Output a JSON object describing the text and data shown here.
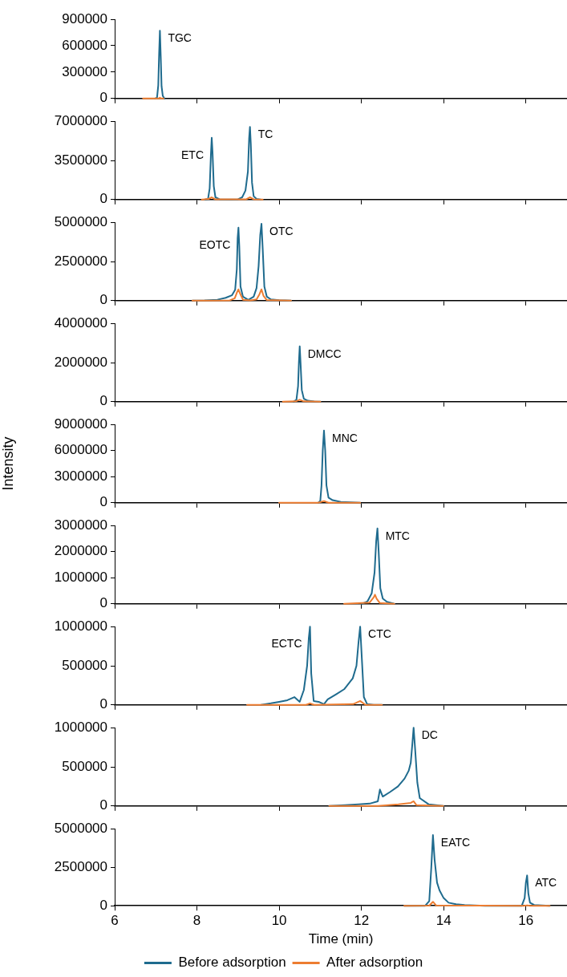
{
  "chart_data": [
    {
      "type": "line",
      "xlim": [
        6,
        17
      ],
      "xticks": [
        6,
        8,
        10,
        12,
        14,
        16
      ],
      "ylim": [
        0,
        900000
      ],
      "yticks": [
        0,
        300000,
        600000,
        900000
      ],
      "tick_labels": "y",
      "grid": false,
      "legend": false,
      "marker": "none",
      "annotations": [
        {
          "text": "TGC",
          "x": 7.1,
          "y": 770000
        }
      ],
      "series": [
        {
          "color": "#1f6b8e",
          "x": [
            6.98,
            7.03,
            7.06,
            7.08,
            7.1,
            7.12,
            7.14,
            7.17,
            7.21
          ],
          "values": [
            0,
            10000,
            150000,
            500000,
            770000,
            480000,
            140000,
            30000,
            0
          ]
        },
        {
          "color": "#ed7d31",
          "x": [
            6.69,
            7.0,
            7.08,
            7.1,
            7.12,
            7.19
          ],
          "values": [
            0,
            0,
            0,
            10000,
            0,
            0
          ]
        }
      ]
    },
    {
      "type": "line",
      "xlim": [
        6,
        17
      ],
      "xticks": [
        6,
        8,
        10,
        12,
        14,
        16
      ],
      "ylim": [
        0,
        7000000
      ],
      "yticks": [
        0,
        3500000,
        7000000
      ],
      "tick_labels": "y",
      "grid": false,
      "legend": false,
      "marker": "none",
      "annotations": [
        {
          "text": "ETC",
          "x": 8.36,
          "y": 5520000
        },
        {
          "text": "TC",
          "x": 9.29,
          "y": 6500000
        }
      ],
      "series": [
        {
          "color": "#1f6b8e",
          "x": [
            8.2,
            8.27,
            8.31,
            8.34,
            8.36,
            8.38,
            8.41,
            8.45,
            8.55,
            8.8,
            9.0,
            9.1,
            9.18,
            9.24,
            9.27,
            9.29,
            9.31,
            9.34,
            9.38,
            9.45,
            9.55
          ],
          "values": [
            0,
            50000,
            1000000,
            4000000,
            5520000,
            4200000,
            1200000,
            200000,
            30000,
            10000,
            30000,
            200000,
            800000,
            2500000,
            5500000,
            6500000,
            5000000,
            1500000,
            300000,
            60000,
            0
          ]
        },
        {
          "color": "#ed7d31",
          "x": [
            8.12,
            8.28,
            8.36,
            8.44,
            9.2,
            9.29,
            9.38,
            9.6
          ],
          "values": [
            0,
            50000,
            200000,
            30000,
            30000,
            200000,
            30000,
            0
          ]
        }
      ]
    },
    {
      "type": "line",
      "xlim": [
        6,
        17
      ],
      "xticks": [
        6,
        8,
        10,
        12,
        14,
        16
      ],
      "ylim": [
        0,
        5000000
      ],
      "yticks": [
        0,
        2500000,
        5000000
      ],
      "tick_labels": "y",
      "grid": false,
      "legend": false,
      "marker": "none",
      "annotations": [
        {
          "text": "EOTC",
          "x": 9.01,
          "y": 4660000
        },
        {
          "text": "OTC",
          "x": 9.57,
          "y": 4910000
        }
      ],
      "series": [
        {
          "color": "#1f6b8e",
          "x": [
            7.89,
            8.2,
            8.5,
            8.7,
            8.85,
            8.93,
            8.97,
            8.99,
            9.01,
            9.03,
            9.06,
            9.12,
            9.25,
            9.38,
            9.45,
            9.5,
            9.54,
            9.57,
            9.6,
            9.64,
            9.7,
            9.8,
            10.0,
            10.29
          ],
          "values": [
            0,
            20000,
            60000,
            180000,
            340000,
            700000,
            2000000,
            4000000,
            4660000,
            3500000,
            900000,
            250000,
            50000,
            250000,
            800000,
            2200000,
            4200000,
            4910000,
            3300000,
            900000,
            250000,
            80000,
            30000,
            0
          ]
        },
        {
          "color": "#ed7d31",
          "x": [
            7.89,
            8.8,
            8.92,
            8.97,
            9.01,
            9.05,
            9.12,
            9.3,
            9.45,
            9.52,
            9.57,
            9.62,
            9.7,
            10.29
          ],
          "values": [
            0,
            20000,
            150000,
            500000,
            720000,
            450000,
            60000,
            20000,
            80000,
            400000,
            720000,
            300000,
            40000,
            0
          ]
        }
      ]
    },
    {
      "type": "line",
      "xlim": [
        6,
        17
      ],
      "xticks": [
        6,
        8,
        10,
        12,
        14,
        16
      ],
      "ylim": [
        0,
        4000000
      ],
      "yticks": [
        0,
        2000000,
        4000000
      ],
      "tick_labels": "y",
      "grid": false,
      "legend": false,
      "marker": "none",
      "annotations": [
        {
          "text": "DMCC",
          "x": 10.5,
          "y": 2830000
        }
      ],
      "series": [
        {
          "color": "#1f6b8e",
          "x": [
            10.35,
            10.42,
            10.46,
            10.48,
            10.5,
            10.52,
            10.55,
            10.6,
            10.7,
            10.85,
            11.0
          ],
          "values": [
            0,
            100000,
            800000,
            2000000,
            2830000,
            2000000,
            600000,
            150000,
            50000,
            10000,
            0
          ]
        },
        {
          "color": "#ed7d31",
          "x": [
            10.09,
            10.4,
            10.5,
            10.6,
            11.0
          ],
          "values": [
            0,
            20000,
            100000,
            20000,
            0
          ]
        }
      ]
    },
    {
      "type": "line",
      "xlim": [
        6,
        17
      ],
      "xticks": [
        6,
        8,
        10,
        12,
        14,
        16
      ],
      "ylim": [
        0,
        9000000
      ],
      "yticks": [
        0,
        3000000,
        6000000,
        9000000
      ],
      "tick_labels": "y",
      "grid": false,
      "legend": false,
      "marker": "none",
      "ylabel": "Intensity",
      "annotations": [
        {
          "text": "MNC",
          "x": 11.09,
          "y": 8270000
        }
      ],
      "series": [
        {
          "color": "#1f6b8e",
          "x": [
            10.95,
            11.0,
            11.03,
            11.06,
            11.09,
            11.12,
            11.15,
            11.2,
            11.3,
            11.5,
            11.97
          ],
          "values": [
            0,
            200000,
            2000000,
            6000000,
            8300000,
            6000000,
            2000000,
            600000,
            300000,
            100000,
            0
          ]
        },
        {
          "color": "#ed7d31",
          "x": [
            10.0,
            10.95,
            11.09,
            11.2,
            11.97
          ],
          "values": [
            0,
            0,
            200000,
            0,
            0
          ]
        }
      ]
    },
    {
      "type": "line",
      "xlim": [
        6,
        17
      ],
      "xticks": [
        6,
        8,
        10,
        12,
        14,
        16
      ],
      "ylim": [
        0,
        3000000
      ],
      "yticks": [
        0,
        1000000,
        2000000,
        3000000
      ],
      "tick_labels": "y",
      "grid": false,
      "legend": false,
      "marker": "none",
      "annotations": [
        {
          "text": "MTC",
          "x": 12.39,
          "y": 2890000
        }
      ],
      "series": [
        {
          "color": "#1f6b8e",
          "x": [
            12.01,
            12.15,
            12.25,
            12.32,
            12.36,
            12.39,
            12.42,
            12.46,
            12.52,
            12.62,
            12.8
          ],
          "values": [
            0,
            100000,
            400000,
            1200000,
            2400000,
            2890000,
            2000000,
            600000,
            200000,
            80000,
            0
          ]
        },
        {
          "color": "#ed7d31",
          "x": [
            11.58,
            12.2,
            12.3,
            12.33,
            12.37,
            12.45,
            12.8
          ],
          "values": [
            0,
            50000,
            250000,
            350000,
            200000,
            30000,
            0
          ]
        }
      ]
    },
    {
      "type": "line",
      "xlim": [
        6,
        17
      ],
      "xticks": [
        6,
        8,
        10,
        12,
        14,
        16
      ],
      "ylim": [
        0,
        1000000
      ],
      "yticks": [
        0,
        500000,
        1000000
      ],
      "tick_labels": "y",
      "grid": false,
      "legend": false,
      "marker": "none",
      "annotations": [
        {
          "text": "ECTC",
          "x": 10.75,
          "y": 1000000
        },
        {
          "text": "CTC",
          "x": 11.97,
          "y": 1000000
        }
      ],
      "series": [
        {
          "color": "#1f6b8e",
          "x": [
            9.56,
            9.8,
            10.0,
            10.2,
            10.37,
            10.5,
            10.6,
            10.68,
            10.72,
            10.75,
            10.78,
            10.84,
            10.96,
            11.09,
            11.18,
            11.4,
            11.58,
            11.79,
            11.88,
            11.93,
            11.97,
            12.01,
            12.06,
            12.14,
            12.3,
            12.5
          ],
          "values": [
            0,
            20000,
            40000,
            60000,
            100000,
            40000,
            190000,
            500000,
            850000,
            1000000,
            400000,
            50000,
            40000,
            10000,
            70000,
            140000,
            200000,
            340000,
            500000,
            800000,
            1000000,
            600000,
            100000,
            10000,
            0,
            0
          ]
        },
        {
          "color": "#ed7d31",
          "x": [
            9.22,
            10.65,
            10.75,
            10.85,
            11.8,
            11.97,
            12.1,
            12.5
          ],
          "values": [
            0,
            0,
            20000,
            0,
            10000,
            50000,
            0,
            0
          ]
        }
      ]
    },
    {
      "type": "line",
      "xlim": [
        6,
        17
      ],
      "xticks": [
        6,
        8,
        10,
        12,
        14,
        16
      ],
      "ylim": [
        0,
        1000000
      ],
      "yticks": [
        0,
        500000,
        1000000
      ],
      "tick_labels": "y",
      "grid": false,
      "legend": false,
      "marker": "none",
      "annotations": [
        {
          "text": "DC",
          "x": 13.27,
          "y": 1000000
        }
      ],
      "series": [
        {
          "color": "#1f6b8e",
          "x": [
            11.22,
            11.6,
            11.93,
            12.2,
            12.4,
            12.45,
            12.52,
            12.7,
            12.89,
            13.05,
            13.15,
            13.2,
            13.24,
            13.27,
            13.31,
            13.36,
            13.42,
            13.64,
            13.99
          ],
          "values": [
            0,
            10000,
            20000,
            30000,
            60000,
            210000,
            120000,
            180000,
            250000,
            350000,
            450000,
            550000,
            800000,
            1000000,
            700000,
            300000,
            100000,
            20000,
            0
          ]
        },
        {
          "color": "#ed7d31",
          "x": [
            11.22,
            12.4,
            12.9,
            13.2,
            13.27,
            13.34,
            13.99
          ],
          "values": [
            0,
            0,
            20000,
            40000,
            60000,
            10000,
            0
          ]
        }
      ]
    },
    {
      "type": "line",
      "xlim": [
        6,
        17
      ],
      "xticks": [
        6,
        8,
        10,
        12,
        14,
        16
      ],
      "ylim": [
        0,
        5000000
      ],
      "yticks": [
        0,
        2500000,
        5000000
      ],
      "grid": false,
      "legend": "bottom",
      "marker": "none",
      "xlabel": "Time (min)",
      "annotations": [
        {
          "text": "EATC",
          "x": 13.74,
          "y": 4590000
        },
        {
          "text": "ATC",
          "x": 16.03,
          "y": 1970000
        }
      ],
      "series": [
        {
          "name": "Before adsorption",
          "color": "#1f6b8e",
          "x": [
            13.04,
            13.55,
            13.65,
            13.7,
            13.74,
            13.78,
            13.84,
            13.9,
            14.0,
            14.12,
            14.3,
            14.51,
            15.0,
            15.9,
            15.97,
            16.0,
            16.03,
            16.06,
            16.1,
            16.2,
            16.58
          ],
          "values": [
            0,
            0,
            300000,
            2500000,
            4590000,
            3000000,
            1500000,
            1000000,
            500000,
            200000,
            100000,
            50000,
            0,
            0,
            500000,
            1500000,
            1970000,
            800000,
            200000,
            50000,
            0
          ]
        },
        {
          "name": "After adsorption",
          "color": "#ed7d31",
          "x": [
            13.04,
            13.65,
            13.74,
            13.82,
            15.95,
            16.03,
            16.1,
            16.58
          ],
          "values": [
            0,
            10000,
            260000,
            20000,
            0,
            30000,
            0,
            0
          ]
        }
      ]
    }
  ]
}
